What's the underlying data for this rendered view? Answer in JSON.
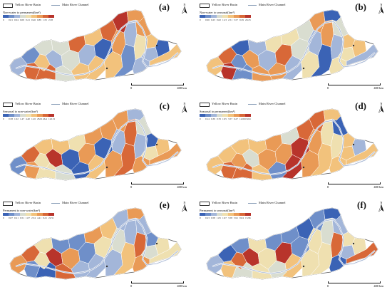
{
  "legend": {
    "basin": "Yellow River Basin",
    "river": "Main River Channel"
  },
  "scale": {
    "distance_start": "0",
    "distance_end": "400 km"
  },
  "north": "N",
  "ramp_colors": [
    "#3b63b5",
    "#6f8fc9",
    "#a3b6d9",
    "#d9ddd0",
    "#efe0b0",
    "#f2c27c",
    "#e99a56",
    "#d86838",
    "#b8342b"
  ],
  "panels": [
    {
      "label": "(a)",
      "title": "Non-water to permanent(km²)",
      "ticks": [
        "0",
        "0.01",
        "0.04",
        "0.09",
        "0.21",
        "0.46",
        "0.89",
        "1.55",
        "2.58"
      ],
      "fill_seed": 3,
      "hot": [
        19
      ]
    },
    {
      "label": "(b)",
      "title": "Non-water to seasonal(km²)",
      "ticks": [
        "0",
        "0.06",
        "0.23",
        "0.62",
        "1.23",
        "2.51",
        "5.57",
        "9.39",
        "20.23"
      ],
      "fill_seed": 11,
      "hot": [
        2
      ]
    },
    {
      "label": "(c)",
      "title": "Seasonal to non-water(km²)",
      "ticks": [
        "0",
        "0.58",
        "1.02",
        "1.47",
        "4.40",
        "12.6",
        "28.01",
        "46.4",
        "122.51"
      ],
      "fill_seed": 23,
      "hot": [
        5
      ]
    },
    {
      "label": "(d)",
      "title": "Seasonal to permanent(km²)",
      "ticks": [
        "0",
        "0.14",
        "0.39",
        "0.76",
        "1.95",
        "3.57",
        "6.27",
        "12.66",
        "18.04"
      ],
      "fill_seed": 37,
      "hot": [
        14,
        15
      ]
    },
    {
      "label": "(e)",
      "title": "Permanent to non-water(km²)",
      "ticks": [
        "0",
        "0.07",
        "0.21",
        "0.51",
        "1.07",
        "2.54",
        "4.41",
        "9.21",
        "22.51"
      ],
      "fill_seed": 41,
      "hot": [
        5
      ]
    },
    {
      "label": "(f)",
      "title": "Permanent to seasonal(km²)",
      "ticks": [
        "0",
        "0.23",
        "0.58",
        "1.05",
        "1.67",
        "3.58",
        "5.91",
        "9.04",
        "13.96"
      ],
      "fill_seed": 53,
      "hot": [
        5,
        12
      ]
    }
  ]
}
